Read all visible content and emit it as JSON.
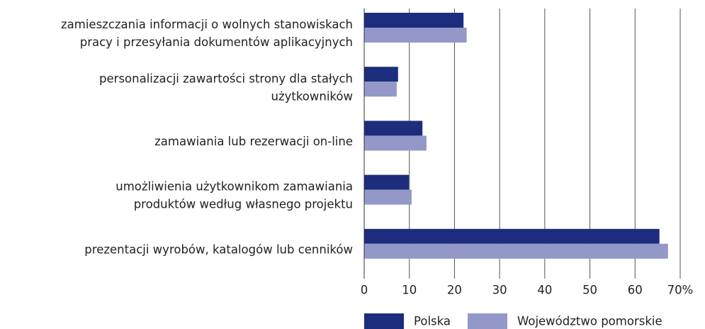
{
  "chart_data": {
    "type": "bar",
    "orientation": "horizontal",
    "categories": [
      [
        "zamieszczania informacji o wolnych stanowiskach",
        "pracy i przesyłania dokumentów aplikacyjnych"
      ],
      [
        "personalizacji zawartości strony dla stałych",
        "użytkowników"
      ],
      [
        "zamawiania lub rezerwacji on-line"
      ],
      [
        "umożliwienia użytkownikom zamawiania",
        "produktów według własnego projektu"
      ],
      [
        "prezentacji wyrobów, katalogów lub cenników"
      ]
    ],
    "series": [
      {
        "name": "Polska",
        "color": "#1c2d7d",
        "values": [
          22,
          7.5,
          12.9,
          9.9,
          65.4
        ]
      },
      {
        "name": "Województwo pomorskie",
        "color": "#9398c8",
        "values": [
          22.7,
          7.2,
          13.8,
          10.5,
          67.3
        ]
      }
    ],
    "xlim": [
      0,
      70
    ],
    "xticks": [
      0,
      10,
      20,
      30,
      40,
      50,
      60,
      {
        "value": 70,
        "label": "70%"
      }
    ],
    "grid": true,
    "legend": "bottom"
  }
}
